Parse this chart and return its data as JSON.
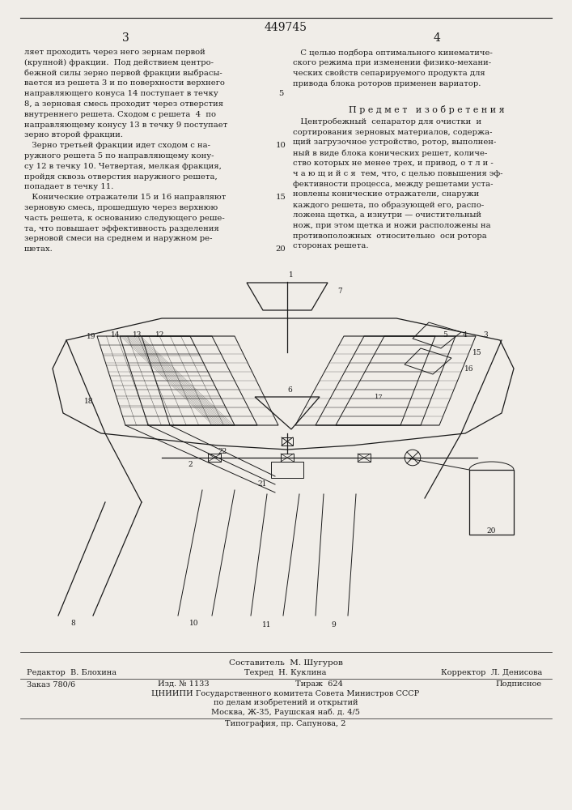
{
  "patent_number": "449745",
  "page_left": "3",
  "page_right": "4",
  "background_color": "#f0ede8",
  "text_color": "#1a1a1a",
  "left_column_text": [
    "ляет проходить через него зернам первой",
    "(крупной) фракции.  Под действием центро-",
    "бежной силы зерно первой фракции выбрасы-",
    "вается из решета 3 и по поверхности верхнего",
    "направляющего конуса 14 поступает в течку",
    "8, а зерновая смесь проходит через отверстия",
    "внутреннего решета. Сходом с решета  4  по",
    "направляющему конусу 13 в течку 9 поступает",
    "зерно второй фракции.",
    "   Зерно третьей фракции идет сходом с на-",
    "ружного решета 5 по направляющему кону-",
    "су 12 в течку 10. Четвертая, мелкая фракция,",
    "пройдя сквозь отверстия наружного решета,",
    "попадает в течку 11.",
    "   Конические отражатели 15 и 16 направляют",
    "зерновую смесь, прошедшую через верхнюю",
    "часть решета, к основанию следующего реше-",
    "та, что повышает эффективность разделения",
    "зерновой смеси на среднем и наружном ре-",
    "шетах."
  ],
  "right_column_text_top": [
    "   С целью подбора оптимального кинематиче-",
    "ского режима при изменении физико-механи-",
    "ческих свойств сепарируемого продукта для",
    "привода блока роторов применен вариатор."
  ],
  "predmet_title": "П р е д м е т   и з о б р е т е н и я",
  "right_column_text_bottom": [
    "   Центробежный  сепаратор для очистки  и",
    "сортирования зерновых материалов, содержа-",
    "щий загрузочное устройство, ротор, выполнен-",
    "ный в виде блока конических решет, количе-",
    "ство которых не менее трех, и привод, о т л и -",
    "ч а ю щ и й с я  тем, что, с целью повышения эф-",
    "фективности процесса, между решетами уста-",
    "новлены конические отражатели, снаружи",
    "каждого решета, по образующей его, распо-",
    "ложена щетка, а изнутри — очистительный",
    "нож, при этом щетка и ножи расположены на",
    "противоположных  относительно  оси ротора",
    "сторонах решета."
  ],
  "footer_sestavitel": "Составитель  М. Шугуров",
  "footer_editor": "Редактор  В. Блохина",
  "footer_tekhred": "Техред  Н. Куклина",
  "footer_korrektor": "Корректор  Л. Денисова",
  "footer_zakaz": "Заказ 780/6",
  "footer_izd": "Изд. № 1133",
  "footer_tirazh": "Тираж  624",
  "footer_podpisnoe": "Подписное",
  "footer_tsniipи": "ЦНИИПИ Государственного комитета Совета Министров СССР",
  "footer_po_delam": "по делам изобретений и открытий",
  "footer_moscow": "Москва, Ж-35, Раушская наб. д. 4/5",
  "footer_tipografia": "Типография, пр. Сапунова, 2"
}
